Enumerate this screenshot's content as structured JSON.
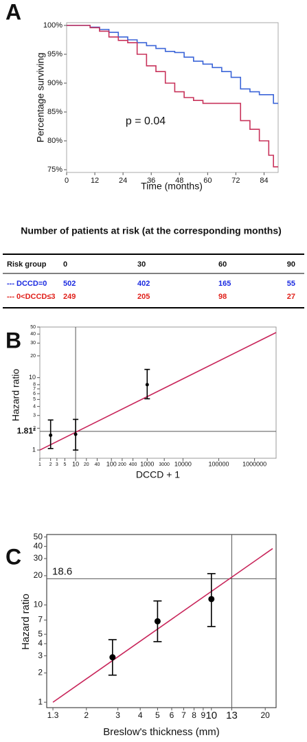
{
  "chart_data": [
    {
      "type": "line",
      "step": true,
      "panel_label": "A",
      "xlabel": "Time (months)",
      "ylabel": "Percentage surviving",
      "annotation": "p = 0.04",
      "xlim": [
        0,
        90
      ],
      "ylim": [
        75,
        100
      ],
      "xticks": [
        0,
        12,
        24,
        36,
        48,
        60,
        72,
        84
      ],
      "yticks": [
        {
          "value": 75,
          "label": "75%"
        },
        {
          "value": 80,
          "label": "80%"
        },
        {
          "value": 85,
          "label": "85%"
        },
        {
          "value": 90,
          "label": "90%"
        },
        {
          "value": 95,
          "label": "95%"
        },
        {
          "value": 100,
          "label": "100%"
        }
      ],
      "x": [
        0,
        10,
        14,
        18,
        22,
        26,
        30,
        34,
        38,
        42,
        46,
        50,
        54,
        58,
        62,
        66,
        70,
        74,
        78,
        82,
        86,
        88,
        90
      ],
      "series": [
        {
          "color": "#3a64d8",
          "values": [
            100,
            99.7,
            99.3,
            98.8,
            98,
            97.5,
            97,
            96.5,
            96,
            95.5,
            95.3,
            94.5,
            93.8,
            93.3,
            92.7,
            92,
            91,
            89,
            88.5,
            88,
            88,
            86.5,
            86.5
          ]
        },
        {
          "color": "#c8325a",
          "values": [
            100,
            99.6,
            99,
            98,
            97.4,
            97,
            95,
            93,
            92,
            90,
            88.5,
            87.5,
            87,
            86.5,
            86.5,
            86.5,
            86.5,
            83.5,
            82,
            80,
            77.5,
            75.5,
            75.5
          ]
        }
      ]
    },
    {
      "type": "scatter",
      "panel_label": "B",
      "xscale": "log",
      "yscale": "log",
      "xlabel": "DCCD + 1",
      "ylabel": "Hazard ratio",
      "xlim": [
        1,
        4000000
      ],
      "ylim": [
        0.77,
        50
      ],
      "xticks": [
        1,
        2,
        3,
        5,
        10,
        20,
        40,
        100,
        200,
        400,
        1000,
        3000,
        10000,
        100000,
        1000000
      ],
      "yticks": [
        1,
        2,
        3,
        4,
        5,
        6,
        7,
        8,
        10,
        20,
        30,
        40,
        50
      ],
      "hline": {
        "value": 1.81,
        "label": "1.81²"
      },
      "vline": 10,
      "x": [
        2,
        10,
        1000
      ],
      "values": [
        1.6,
        1.65,
        8
      ],
      "lower": [
        1.05,
        1.0,
        5.1
      ],
      "upper": [
        2.6,
        2.65,
        13
      ],
      "fit": {
        "x": [
          1,
          4000000
        ],
        "y": [
          1,
          42
        ],
        "color": "#c8255a"
      }
    },
    {
      "type": "scatter",
      "panel_label": "C",
      "xscale": "log",
      "yscale": "log",
      "xlabel": "Breslow's thickness (mm)",
      "ylabel": "Hazard ratio",
      "xlim": [
        1.2,
        23
      ],
      "ylim": [
        0.88,
        53
      ],
      "xticks": [
        1.3,
        2,
        3,
        4,
        5,
        6,
        7,
        8,
        9,
        10,
        13,
        20
      ],
      "yticks": [
        1,
        2,
        3,
        4,
        5,
        7,
        10,
        20,
        30,
        40,
        50
      ],
      "hline": 18.6,
      "vline": 13,
      "x": [
        2.8,
        5,
        10
      ],
      "values": [
        2.9,
        6.8,
        11.5
      ],
      "lower": [
        1.9,
        4.2,
        6
      ],
      "upper": [
        4.4,
        11,
        21
      ],
      "fit": {
        "x": [
          1.3,
          22
        ],
        "y": [
          1,
          38
        ],
        "color": "#c8255a"
      }
    }
  ],
  "table": {
    "title": "Number of patients at risk (at the corresponding months)",
    "header": [
      "Risk group",
      "0",
      "30",
      "60",
      "90"
    ],
    "rows": [
      {
        "label": "--- DCCD=0",
        "color": "#1a2ae0",
        "cells": [
          502,
          402,
          165,
          55
        ]
      },
      {
        "label": "--- 0<DCCD≤3",
        "color": "#e0201a",
        "cells": [
          249,
          205,
          98,
          27
        ]
      }
    ]
  }
}
